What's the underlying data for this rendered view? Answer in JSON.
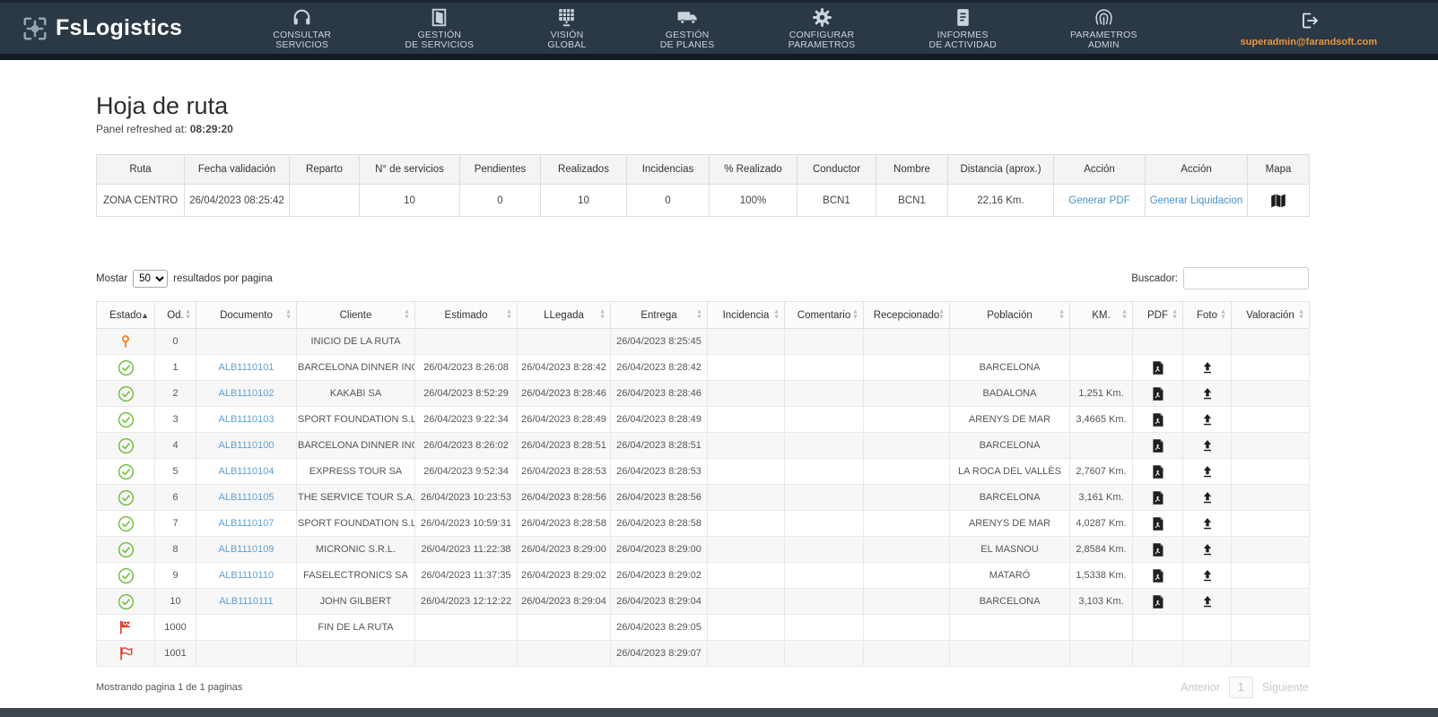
{
  "colors": {
    "header_bg": "#2b3845",
    "header_strip": "#141b22",
    "nav_text": "#c9d3da",
    "email_orange": "#e8963c",
    "link_blue": "#4793c9",
    "doc_link_blue": "#5d9fd6",
    "status_green": "#76c043",
    "pin_orange": "#e8821e",
    "flag_red": "#df3526",
    "table_border": "#dddddd",
    "table_header_bg": "#f4f4f4",
    "stripe_bg": "#f7f7f7",
    "text_dark": "#333333",
    "text_gray": "#555555"
  },
  "icons": {
    "logo": "move-crosshair",
    "consultar_servicios": "headset",
    "gestion_de_servicios": "door",
    "vision_global": "panel-grid",
    "gestion_de_planes": "truck",
    "configurar_parametros": "gear",
    "informes_de_actividad": "report-document",
    "parametros_admin": "fingerprint",
    "logout": "exit-arrow",
    "mapa": "folded-map",
    "estado_inicio": "map-pin",
    "estado_ok": "check-circle",
    "estado_fin": "checkered-flag",
    "estado_extra": "flag",
    "pdf": "pdf-file",
    "foto": "upload-arrow"
  },
  "header": {
    "brand": "FsLogistics",
    "nav": [
      {
        "name": "consultar-servicios",
        "lines": [
          "CONSULTAR",
          "SERVICIOS"
        ]
      },
      {
        "name": "gestion-de-servicios",
        "lines": [
          "GESTIÓN",
          "DE SERVICIOS"
        ]
      },
      {
        "name": "vision-global",
        "lines": [
          "VISIÓN",
          "GLOBAL"
        ]
      },
      {
        "name": "gestion-de-planes",
        "lines": [
          "GESTIÓN",
          "DE PLANES"
        ]
      },
      {
        "name": "configurar-parametros",
        "lines": [
          "CONFIGURAR",
          "PARAMETROS"
        ]
      },
      {
        "name": "informes-de-actividad",
        "lines": [
          "INFORMES",
          "DE ACTIVIDAD"
        ]
      },
      {
        "name": "parametros-admin",
        "lines": [
          "PARAMETROS",
          "ADMIN"
        ]
      }
    ],
    "user_email": "superadmin@farandsoft.com"
  },
  "page": {
    "title": "Hoja de ruta",
    "refreshed_label": "Panel refreshed at:",
    "refreshed_time": "08:29:20"
  },
  "summary_table": {
    "headers": [
      "Ruta",
      "Fecha validación",
      "Reparto",
      "N° de servicios",
      "Pendientes",
      "Realizados",
      "Incidencias",
      "% Realizado",
      "Conductor",
      "Nombre",
      "Distancia (aprox.)",
      "Acción",
      "Acción",
      "Mapa"
    ],
    "row": {
      "ruta": "ZONA CENTRO",
      "fecha_validacion": "26/04/2023 08:25:42",
      "reparto": "",
      "num_servicios": "10",
      "pendientes": "0",
      "realizados": "10",
      "incidencias": "0",
      "pct_realizado": "100%",
      "conductor": "BCN1",
      "nombre": "BCN1",
      "distancia": "22,16 Km.",
      "accion_pdf": "Generar PDF",
      "accion_liquidacion": "Generar Liquidacion"
    }
  },
  "controls": {
    "show_label": "Mostar",
    "page_size": "50",
    "results_label": "resultados por pagina",
    "search_label": "Buscador:",
    "search_value": ""
  },
  "route_table": {
    "columns": [
      {
        "label": "Estado",
        "sorted": "asc"
      },
      {
        "label": "Od."
      },
      {
        "label": "Documento"
      },
      {
        "label": "Cliente"
      },
      {
        "label": "Estimado"
      },
      {
        "label": "LLegada"
      },
      {
        "label": "Entrega"
      },
      {
        "label": "Incidencia"
      },
      {
        "label": "Comentario"
      },
      {
        "label": "Recepcionado"
      },
      {
        "label": "Población"
      },
      {
        "label": "KM."
      },
      {
        "label": "PDF"
      },
      {
        "label": "Foto"
      },
      {
        "label": "Valoración"
      }
    ],
    "rows": [
      {
        "estado": "pin",
        "od": "0",
        "documento": "",
        "cliente": "INICIO DE LA RUTA",
        "estimado": "",
        "llegada": "",
        "entrega": "26/04/2023 8:25:45",
        "incidencia": "",
        "comentario": "",
        "recepcionado": "",
        "poblacion": "",
        "km": "",
        "pdf": false,
        "foto": false,
        "valoracion": ""
      },
      {
        "estado": "check",
        "od": "1",
        "documento": "ALB1110101",
        "cliente": "BARCELONA DINNER INC",
        "estimado": "26/04/2023 8:26:08",
        "llegada": "26/04/2023 8:28:42",
        "entrega": "26/04/2023 8:28:42",
        "incidencia": "",
        "comentario": "",
        "recepcionado": "",
        "poblacion": "BARCELONA",
        "km": "",
        "pdf": true,
        "foto": true,
        "valoracion": ""
      },
      {
        "estado": "check",
        "od": "2",
        "documento": "ALB1110102",
        "cliente": "KAKABI SA",
        "estimado": "26/04/2023 8:52:29",
        "llegada": "26/04/2023 8:28:46",
        "entrega": "26/04/2023 8:28:46",
        "incidencia": "",
        "comentario": "",
        "recepcionado": "",
        "poblacion": "BADALONA",
        "km": "1,251 Km.",
        "pdf": true,
        "foto": true,
        "valoracion": ""
      },
      {
        "estado": "check",
        "od": "3",
        "documento": "ALB1110103",
        "cliente": "SPORT FOUNDATION S.L.",
        "estimado": "26/04/2023 9:22:34",
        "llegada": "26/04/2023 8:28:49",
        "entrega": "26/04/2023 8:28:49",
        "incidencia": "",
        "comentario": "",
        "recepcionado": "",
        "poblacion": "ARENYS DE MAR",
        "km": "3,4665 Km.",
        "pdf": true,
        "foto": true,
        "valoracion": ""
      },
      {
        "estado": "check",
        "od": "4",
        "documento": "ALB1110100",
        "cliente": "BARCELONA DINNER INC",
        "estimado": "26/04/2023 8:26:02",
        "llegada": "26/04/2023 8:28:51",
        "entrega": "26/04/2023 8:28:51",
        "incidencia": "",
        "comentario": "",
        "recepcionado": "",
        "poblacion": "BARCELONA",
        "km": "",
        "pdf": true,
        "foto": true,
        "valoracion": ""
      },
      {
        "estado": "check",
        "od": "5",
        "documento": "ALB1110104",
        "cliente": "EXPRESS TOUR SA",
        "estimado": "26/04/2023 9:52:34",
        "llegada": "26/04/2023 8:28:53",
        "entrega": "26/04/2023 8:28:53",
        "incidencia": "",
        "comentario": "",
        "recepcionado": "",
        "poblacion": "LA ROCA DEL VALLÈS",
        "km": "2,7607 Km.",
        "pdf": true,
        "foto": true,
        "valoracion": ""
      },
      {
        "estado": "check",
        "od": "6",
        "documento": "ALB1110105",
        "cliente": "THE SERVICE TOUR S.A.",
        "estimado": "26/04/2023 10:23:53",
        "llegada": "26/04/2023 8:28:56",
        "entrega": "26/04/2023 8:28:56",
        "incidencia": "",
        "comentario": "",
        "recepcionado": "",
        "poblacion": "BARCELONA",
        "km": "3,161 Km.",
        "pdf": true,
        "foto": true,
        "valoracion": ""
      },
      {
        "estado": "check",
        "od": "7",
        "documento": "ALB1110107",
        "cliente": "SPORT FOUNDATION S.L.",
        "estimado": "26/04/2023 10:59:31",
        "llegada": "26/04/2023 8:28:58",
        "entrega": "26/04/2023 8:28:58",
        "incidencia": "",
        "comentario": "",
        "recepcionado": "",
        "poblacion": "ARENYS DE MAR",
        "km": "4,0287 Km.",
        "pdf": true,
        "foto": true,
        "valoracion": ""
      },
      {
        "estado": "check",
        "od": "8",
        "documento": "ALB1110109",
        "cliente": "MICRONIC S.R.L.",
        "estimado": "26/04/2023 11:22:38",
        "llegada": "26/04/2023 8:29:00",
        "entrega": "26/04/2023 8:29:00",
        "incidencia": "",
        "comentario": "",
        "recepcionado": "",
        "poblacion": "EL MASNOU",
        "km": "2,8584 Km.",
        "pdf": true,
        "foto": true,
        "valoracion": ""
      },
      {
        "estado": "check",
        "od": "9",
        "documento": "ALB1110110",
        "cliente": "FASELECTRONICS SA",
        "estimado": "26/04/2023 11:37:35",
        "llegada": "26/04/2023 8:29:02",
        "entrega": "26/04/2023 8:29:02",
        "incidencia": "",
        "comentario": "",
        "recepcionado": "",
        "poblacion": "MATARÓ",
        "km": "1,5338 Km.",
        "pdf": true,
        "foto": true,
        "valoracion": ""
      },
      {
        "estado": "check",
        "od": "10",
        "documento": "ALB1110111",
        "cliente": "JOHN GILBERT",
        "estimado": "26/04/2023 12:12:22",
        "llegada": "26/04/2023 8:29:04",
        "entrega": "26/04/2023 8:29:04",
        "incidencia": "",
        "comentario": "",
        "recepcionado": "",
        "poblacion": "BARCELONA",
        "km": "3,103 Km.",
        "pdf": true,
        "foto": true,
        "valoracion": ""
      },
      {
        "estado": "flag_checkered",
        "od": "1000",
        "documento": "",
        "cliente": "FIN DE LA RUTA",
        "estimado": "",
        "llegada": "",
        "entrega": "26/04/2023 8:29:05",
        "incidencia": "",
        "comentario": "",
        "recepcionado": "",
        "poblacion": "",
        "km": "",
        "pdf": false,
        "foto": false,
        "valoracion": ""
      },
      {
        "estado": "flag",
        "od": "1001",
        "documento": "",
        "cliente": "",
        "estimado": "",
        "llegada": "",
        "entrega": "26/04/2023 8:29:07",
        "incidencia": "",
        "comentario": "",
        "recepcionado": "",
        "poblacion": "",
        "km": "",
        "pdf": false,
        "foto": false,
        "valoracion": ""
      }
    ]
  },
  "footer": {
    "showing_text": "Mostrando pagina 1 de 1 paginas",
    "prev": "Anterior",
    "page": "1",
    "next": "Siguiente"
  }
}
